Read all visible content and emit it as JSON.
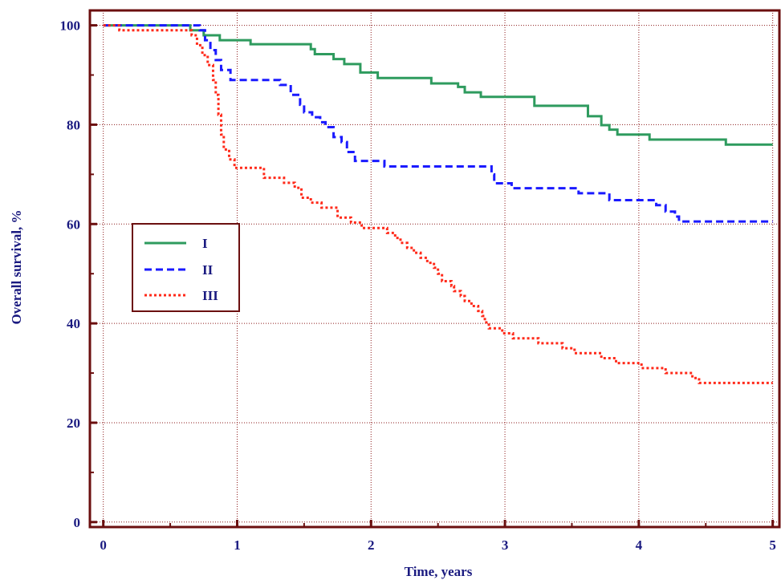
{
  "chart_data": {
    "type": "line",
    "step": true,
    "title": "",
    "xlabel": "Time, years",
    "ylabel": "Overall survival, %",
    "xlim": [
      -0.1,
      5.05
    ],
    "ylim": [
      -1,
      103
    ],
    "xticks": [
      0,
      1,
      2,
      3,
      4,
      5
    ],
    "yticks": [
      0,
      20,
      40,
      60,
      80,
      100
    ],
    "grid": true,
    "legend": "middle-left",
    "colors": {
      "axis": "#6b0f0f",
      "grid": "#8b1a1a",
      "text": "#1a1a80"
    },
    "series": [
      {
        "name": "I",
        "color": "#2e9b5e",
        "dash": "solid",
        "points": [
          [
            0,
            100
          ],
          [
            0.65,
            99
          ],
          [
            0.75,
            98
          ],
          [
            0.87,
            97
          ],
          [
            1.1,
            96.2
          ],
          [
            1.55,
            95.2
          ],
          [
            1.58,
            94.2
          ],
          [
            1.72,
            93.2
          ],
          [
            1.8,
            92.2
          ],
          [
            1.92,
            90.5
          ],
          [
            2.05,
            89.4
          ],
          [
            2.45,
            88.3
          ],
          [
            2.65,
            87.6
          ],
          [
            2.7,
            86.5
          ],
          [
            2.82,
            85.6
          ],
          [
            3.22,
            83.8
          ],
          [
            3.62,
            81.7
          ],
          [
            3.72,
            79.9
          ],
          [
            3.78,
            79
          ],
          [
            3.84,
            78
          ],
          [
            4.08,
            77
          ],
          [
            4.65,
            76
          ],
          [
            5.0,
            76
          ]
        ]
      },
      {
        "name": "II",
        "color": "#1a1aff",
        "dash": "dashed",
        "points": [
          [
            0,
            100
          ],
          [
            0.72,
            99
          ],
          [
            0.76,
            97
          ],
          [
            0.8,
            95
          ],
          [
            0.84,
            93
          ],
          [
            0.88,
            91
          ],
          [
            0.95,
            89
          ],
          [
            1.32,
            88
          ],
          [
            1.4,
            86
          ],
          [
            1.47,
            84
          ],
          [
            1.5,
            82.5
          ],
          [
            1.56,
            81.5
          ],
          [
            1.62,
            80.5
          ],
          [
            1.66,
            79.5
          ],
          [
            1.72,
            77.5
          ],
          [
            1.78,
            76.5
          ],
          [
            1.82,
            74.5
          ],
          [
            1.88,
            72.7
          ],
          [
            2.1,
            71.6
          ],
          [
            2.9,
            70
          ],
          [
            2.92,
            68.2
          ],
          [
            3.05,
            67.2
          ],
          [
            3.55,
            66.2
          ],
          [
            3.78,
            64.8
          ],
          [
            4.13,
            63.8
          ],
          [
            4.2,
            62.5
          ],
          [
            4.27,
            61.5
          ],
          [
            4.3,
            60.5
          ],
          [
            5.0,
            60.5
          ]
        ]
      },
      {
        "name": "III",
        "color": "#ff2a1a",
        "dash": "dotted",
        "points": [
          [
            0,
            100
          ],
          [
            0.12,
            99
          ],
          [
            0.66,
            98
          ],
          [
            0.7,
            96
          ],
          [
            0.74,
            94
          ],
          [
            0.78,
            92
          ],
          [
            0.82,
            89
          ],
          [
            0.84,
            86
          ],
          [
            0.86,
            82
          ],
          [
            0.88,
            78
          ],
          [
            0.9,
            75
          ],
          [
            0.94,
            73
          ],
          [
            0.98,
            71.3
          ],
          [
            1.2,
            69.3
          ],
          [
            1.35,
            68.3
          ],
          [
            1.43,
            67.3
          ],
          [
            1.48,
            65.3
          ],
          [
            1.55,
            64.3
          ],
          [
            1.63,
            63.3
          ],
          [
            1.75,
            61.3
          ],
          [
            1.85,
            60.3
          ],
          [
            1.93,
            59.2
          ],
          [
            2.12,
            58.2
          ],
          [
            2.18,
            57.2
          ],
          [
            2.22,
            56.2
          ],
          [
            2.27,
            55.2
          ],
          [
            2.32,
            54.2
          ],
          [
            2.37,
            53.2
          ],
          [
            2.42,
            52.2
          ],
          [
            2.47,
            51.2
          ],
          [
            2.5,
            50
          ],
          [
            2.53,
            48.5
          ],
          [
            2.6,
            47.5
          ],
          [
            2.62,
            46.5
          ],
          [
            2.67,
            45.5
          ],
          [
            2.7,
            44.5
          ],
          [
            2.75,
            43.5
          ],
          [
            2.8,
            42.5
          ],
          [
            2.83,
            41.5
          ],
          [
            2.85,
            40.2
          ],
          [
            2.88,
            39
          ],
          [
            2.98,
            38
          ],
          [
            3.06,
            37
          ],
          [
            3.25,
            36
          ],
          [
            3.43,
            35
          ],
          [
            3.52,
            34
          ],
          [
            3.72,
            33
          ],
          [
            3.83,
            32
          ],
          [
            4.02,
            31
          ],
          [
            4.2,
            30
          ],
          [
            4.4,
            29
          ],
          [
            4.45,
            28
          ],
          [
            5.0,
            28
          ]
        ]
      }
    ]
  }
}
